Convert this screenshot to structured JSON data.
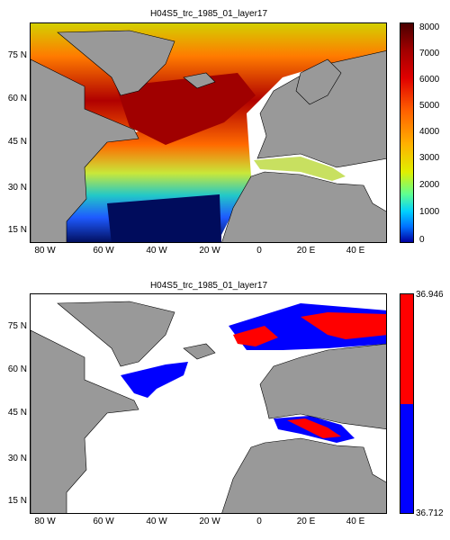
{
  "top": {
    "title": "H04S5_trc_1985_01_layer17",
    "colorbar_ticks": [
      "8000",
      "7000",
      "6000",
      "5000",
      "4000",
      "3000",
      "2000",
      "1000",
      "0"
    ]
  },
  "bottom": {
    "title": "H04S5_trc_1985_01_layer17",
    "colorbar_max": "36.946",
    "colorbar_min": "36.712",
    "colors": {
      "high": "#ff0000",
      "low": "#0000ff"
    }
  },
  "axes": {
    "y_ticks": [
      "75 N",
      "60 N",
      "45 N",
      "30 N",
      "15 N"
    ],
    "x_ticks": [
      "80 W",
      "60 W",
      "40 W",
      "20 W",
      "0",
      "20 E",
      "40 E"
    ]
  },
  "colors": {
    "land": "#999999",
    "ocean_missing": "#ffffff"
  }
}
